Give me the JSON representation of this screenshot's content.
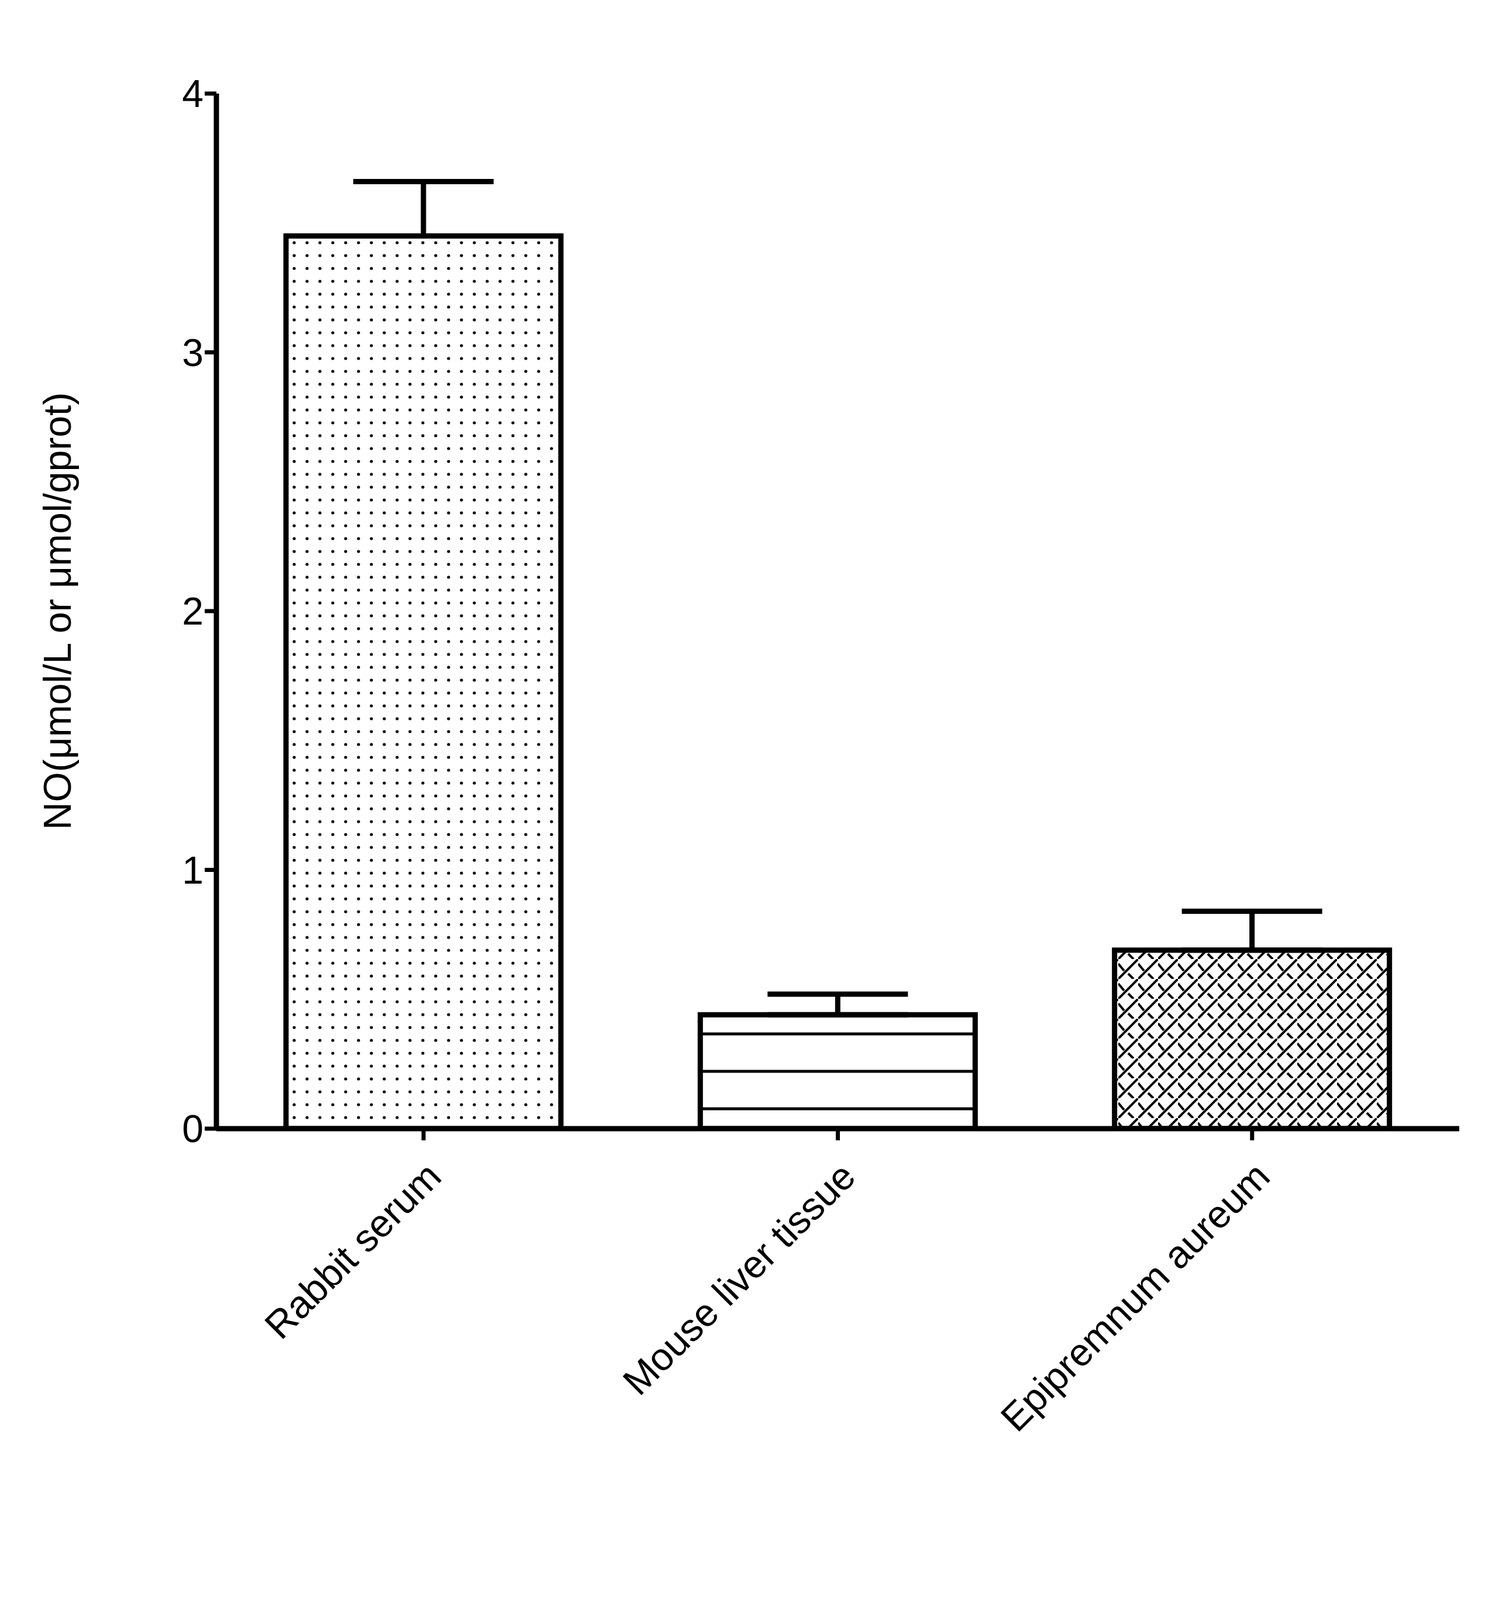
{
  "chart_data": {
    "type": "bar",
    "y_label": "NO(μmol/L or μmol/gprot)",
    "categories": [
      "Rabbit serum",
      "Mouse liver tissue",
      "Epipremnum aureum"
    ],
    "values": [
      3.45,
      0.44,
      0.69
    ],
    "errors": [
      0.21,
      0.08,
      0.15
    ],
    "color": "#000000",
    "ylim": [
      0,
      4
    ],
    "yticks": [
      0,
      1,
      2,
      3,
      4
    ],
    "grid": false
  }
}
